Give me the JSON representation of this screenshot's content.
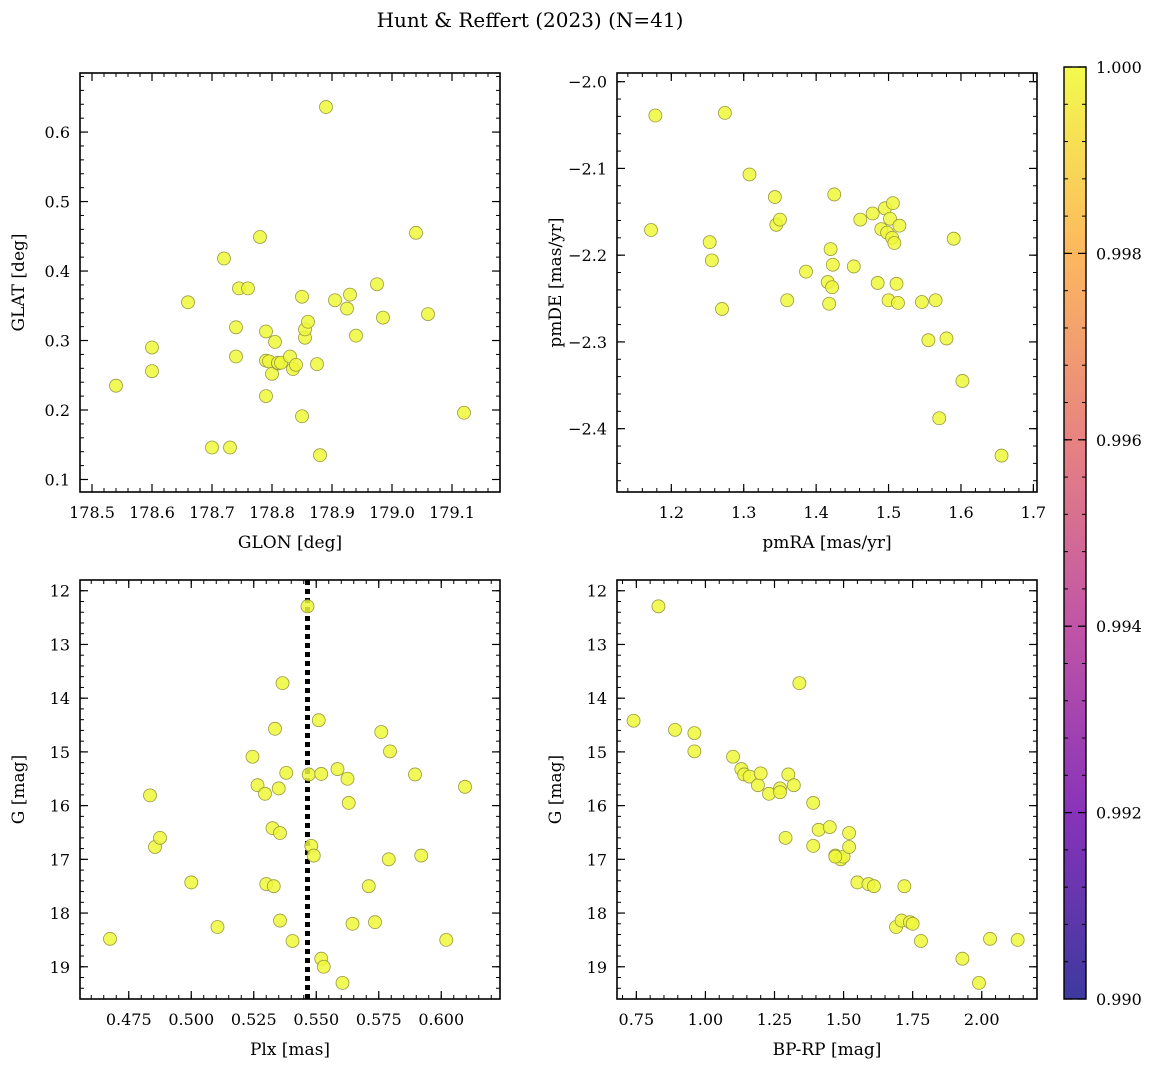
{
  "figure": {
    "title": "Hunt & Reffert (2023) (N=41)"
  },
  "colorbar": {
    "min": 0.99,
    "max": 1.0,
    "ticks": [
      "0.990",
      "0.992",
      "0.994",
      "0.996",
      "0.998",
      "1.000"
    ],
    "colormap": "plasma",
    "colormap_stops": [
      "#0d0887",
      "#6a00a8",
      "#b12a90",
      "#e16462",
      "#fca636",
      "#f0f921"
    ]
  },
  "point_style": {
    "fill": "#eff83a",
    "edge": "#9a9a40",
    "alpha": 0.85
  },
  "chart_data": [
    {
      "type": "scatter",
      "panel": "top-left",
      "xlabel": "GLON [deg]",
      "ylabel": "GLAT [deg]",
      "xlim": [
        178.48,
        179.18
      ],
      "ylim": [
        0.082,
        0.685
      ],
      "xticks": [
        178.5,
        178.6,
        178.7,
        178.8,
        178.9,
        179.0,
        179.1
      ],
      "xtick_labels": [
        "178.5",
        "178.6",
        "178.7",
        "178.8",
        "178.9",
        "179.0",
        "179.1"
      ],
      "yticks": [
        0.1,
        0.2,
        0.3,
        0.4,
        0.5,
        0.6
      ],
      "ytick_labels": [
        "0.1",
        "0.2",
        "0.3",
        "0.4",
        "0.5",
        "0.6"
      ],
      "x": [
        178.54,
        178.6,
        178.6,
        178.66,
        178.7,
        178.72,
        178.73,
        178.74,
        178.74,
        178.745,
        178.76,
        178.78,
        178.79,
        178.79,
        178.79,
        178.795,
        178.8,
        178.805,
        178.81,
        178.81,
        178.815,
        178.83,
        178.835,
        178.84,
        178.85,
        178.85,
        178.855,
        178.855,
        178.86,
        178.875,
        178.88,
        178.89,
        178.905,
        178.925,
        178.93,
        178.94,
        178.975,
        178.985,
        179.04,
        179.06,
        179.12
      ],
      "y": [
        0.235,
        0.29,
        0.256,
        0.355,
        0.146,
        0.418,
        0.146,
        0.277,
        0.319,
        0.375,
        0.375,
        0.449,
        0.22,
        0.271,
        0.313,
        0.27,
        0.252,
        0.298,
        0.267,
        0.268,
        0.268,
        0.277,
        0.259,
        0.265,
        0.191,
        0.363,
        0.304,
        0.316,
        0.327,
        0.266,
        0.135,
        0.636,
        0.358,
        0.346,
        0.366,
        0.307,
        0.381,
        0.333,
        0.455,
        0.338,
        0.196
      ]
    },
    {
      "type": "scatter",
      "panel": "top-right",
      "xlabel": "pmRA [mas/yr]",
      "ylabel": "pmDE [mas/yr]",
      "xlim": [
        1.125,
        1.705
      ],
      "ylim": [
        -2.473,
        -1.99
      ],
      "xticks": [
        1.2,
        1.3,
        1.4,
        1.5,
        1.6,
        1.7
      ],
      "xtick_labels": [
        "1.2",
        "1.3",
        "1.4",
        "1.5",
        "1.6",
        "1.7"
      ],
      "yticks": [
        -2.4,
        -2.3,
        -2.2,
        -2.1,
        -2.0
      ],
      "ytick_labels": [
        "−2.4",
        "−2.3",
        "−2.2",
        "−2.1",
        "−2.0"
      ],
      "x": [
        1.172,
        1.178,
        1.253,
        1.256,
        1.27,
        1.274,
        1.308,
        1.343,
        1.345,
        1.35,
        1.36,
        1.386,
        1.416,
        1.418,
        1.42,
        1.422,
        1.423,
        1.425,
        1.452,
        1.461,
        1.478,
        1.485,
        1.49,
        1.495,
        1.498,
        1.5,
        1.502,
        1.505,
        1.506,
        1.508,
        1.511,
        1.513,
        1.515,
        1.546,
        1.555,
        1.565,
        1.57,
        1.58,
        1.59,
        1.602,
        1.656
      ],
      "y": [
        -2.171,
        -2.039,
        -2.185,
        -2.206,
        -2.262,
        -2.036,
        -2.107,
        -2.133,
        -2.165,
        -2.159,
        -2.252,
        -2.219,
        -2.231,
        -2.256,
        -2.193,
        -2.237,
        -2.211,
        -2.13,
        -2.213,
        -2.159,
        -2.152,
        -2.232,
        -2.17,
        -2.146,
        -2.174,
        -2.252,
        -2.158,
        -2.18,
        -2.14,
        -2.186,
        -2.233,
        -2.255,
        -2.166,
        -2.254,
        -2.298,
        -2.252,
        -2.388,
        -2.296,
        -2.181,
        -2.345,
        -2.431
      ]
    },
    {
      "type": "scatter",
      "panel": "bottom-left",
      "xlabel": "Plx [mas]",
      "ylabel": "G [mag]",
      "xlim": [
        0.4555,
        0.6235
      ],
      "ylim": [
        19.6,
        11.8
      ],
      "xticks": [
        0.475,
        0.5,
        0.525,
        0.55,
        0.575,
        0.6
      ],
      "xtick_labels": [
        "0.475",
        "0.500",
        "0.525",
        "0.550",
        "0.575",
        "0.600"
      ],
      "yticks": [
        12,
        13,
        14,
        15,
        16,
        17,
        18,
        19
      ],
      "ytick_labels": [
        "12",
        "13",
        "14",
        "15",
        "16",
        "17",
        "18",
        "19"
      ],
      "vline": 0.5465,
      "x": [
        0.4675,
        0.4835,
        0.4855,
        0.4875,
        0.5,
        0.5105,
        0.5245,
        0.5265,
        0.5295,
        0.53,
        0.5325,
        0.533,
        0.5335,
        0.535,
        0.5355,
        0.5355,
        0.5365,
        0.538,
        0.5405,
        0.5465,
        0.547,
        0.548,
        0.549,
        0.551,
        0.552,
        0.552,
        0.553,
        0.5585,
        0.5605,
        0.5625,
        0.563,
        0.5645,
        0.571,
        0.5735,
        0.576,
        0.579,
        0.5795,
        0.5895,
        0.592,
        0.602,
        0.6095
      ],
      "y": [
        18.48,
        15.81,
        16.77,
        16.6,
        17.43,
        18.26,
        15.09,
        15.62,
        15.78,
        17.46,
        16.42,
        17.5,
        14.57,
        15.68,
        16.51,
        18.14,
        13.72,
        15.39,
        18.52,
        12.29,
        15.42,
        16.75,
        16.93,
        14.41,
        15.41,
        18.85,
        19.0,
        15.32,
        19.3,
        15.5,
        15.95,
        18.2,
        17.5,
        18.17,
        14.63,
        17.0,
        14.99,
        15.42,
        16.93,
        18.5,
        15.65
      ]
    },
    {
      "type": "scatter",
      "panel": "bottom-right",
      "xlabel": "BP-RP [mag]",
      "ylabel": "G [mag]",
      "xlim": [
        0.68,
        2.2
      ],
      "ylim": [
        19.6,
        11.8
      ],
      "xticks": [
        0.75,
        1.0,
        1.25,
        1.5,
        1.75,
        2.0
      ],
      "xtick_labels": [
        "0.75",
        "1.00",
        "1.25",
        "1.50",
        "1.75",
        "2.00"
      ],
      "yticks": [
        12,
        13,
        14,
        15,
        16,
        17,
        18,
        19
      ],
      "ytick_labels": [
        "12",
        "13",
        "14",
        "15",
        "16",
        "17",
        "18",
        "19"
      ],
      "x": [
        0.74,
        0.83,
        0.89,
        0.96,
        0.96,
        1.1,
        1.13,
        1.14,
        1.16,
        1.19,
        1.2,
        1.23,
        1.27,
        1.27,
        1.29,
        1.3,
        1.32,
        1.34,
        1.39,
        1.39,
        1.41,
        1.45,
        1.47,
        1.49,
        1.5,
        1.52,
        1.52,
        1.55,
        1.59,
        1.61,
        1.69,
        1.71,
        1.72,
        1.74,
        1.75,
        1.78,
        1.93,
        1.99,
        2.03,
        2.13,
        1.47
      ],
      "y": [
        14.42,
        12.29,
        14.59,
        14.65,
        14.99,
        15.09,
        15.32,
        15.42,
        15.46,
        15.62,
        15.4,
        15.78,
        15.68,
        15.75,
        16.6,
        15.42,
        15.62,
        13.72,
        15.95,
        16.75,
        16.45,
        16.4,
        16.93,
        17.0,
        16.95,
        16.77,
        16.51,
        17.43,
        17.46,
        17.5,
        18.26,
        18.14,
        17.5,
        18.17,
        18.2,
        18.52,
        18.85,
        19.3,
        18.48,
        18.5,
        16.95
      ]
    }
  ]
}
